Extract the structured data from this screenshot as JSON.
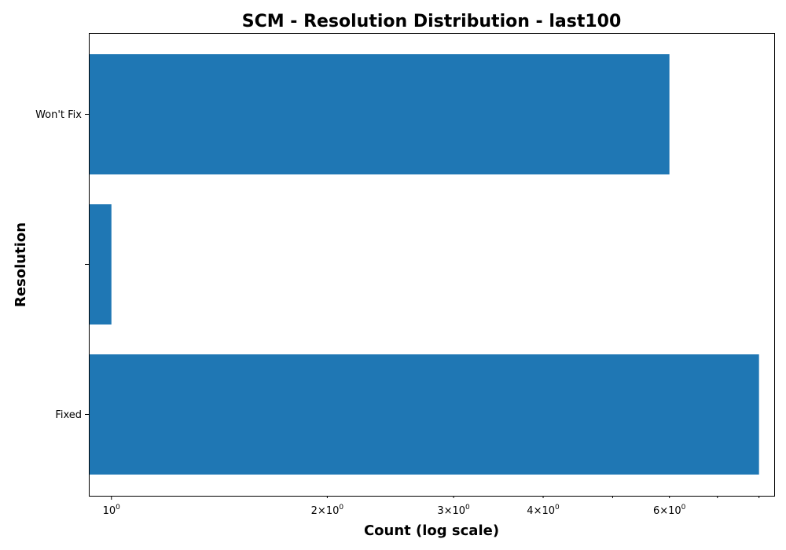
{
  "chart_data": {
    "type": "bar",
    "orientation": "horizontal",
    "title": "SCM - Resolution Distribution - last100",
    "xlabel": "Count (log scale)",
    "ylabel": "Resolution",
    "xscale": "log",
    "xlim": [
      0.93,
      8.4
    ],
    "categories": [
      "Fixed",
      "",
      "Won't Fix"
    ],
    "values": [
      8,
      1,
      6
    ],
    "bar_color": "#1f77b4",
    "x_major_ticks": [
      {
        "value": 1,
        "base": "10",
        "exp": "0"
      }
    ],
    "x_minor_ticks": [
      {
        "value": 2,
        "prefix": "2×",
        "base": "10",
        "exp": "0"
      },
      {
        "value": 3,
        "prefix": "3×",
        "base": "10",
        "exp": "0"
      },
      {
        "value": 4,
        "prefix": "4×",
        "base": "10",
        "exp": "0"
      },
      {
        "value": 5
      },
      {
        "value": 6,
        "prefix": "6×",
        "base": "10",
        "exp": "0"
      },
      {
        "value": 7
      },
      {
        "value": 8
      }
    ],
    "grid": false,
    "legend": "none"
  }
}
